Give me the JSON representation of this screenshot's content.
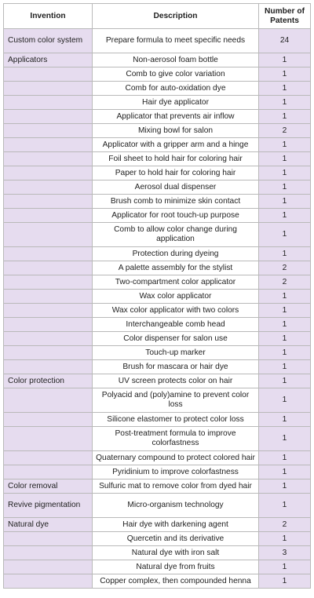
{
  "table": {
    "headers": {
      "invention": "Invention",
      "description": "Description",
      "patents": "Number of Patents"
    },
    "rows": [
      {
        "invention": "Custom color system",
        "description": "Prepare formula to meet specific needs",
        "patents": "24"
      },
      {
        "invention": "Applicators",
        "description": "Non-aerosol foam bottle",
        "patents": "1"
      },
      {
        "invention": "",
        "description": "Comb to give color variation",
        "patents": "1"
      },
      {
        "invention": "",
        "description": "Comb for auto-oxidation dye",
        "patents": "1"
      },
      {
        "invention": "",
        "description": "Hair dye applicator",
        "patents": "1"
      },
      {
        "invention": "",
        "description": "Applicator that prevents air inflow",
        "patents": "1"
      },
      {
        "invention": "",
        "description": "Mixing bowl for salon",
        "patents": "2"
      },
      {
        "invention": "",
        "description": "Applicator with a gripper arm and a hinge",
        "patents": "1"
      },
      {
        "invention": "",
        "description": "Foil sheet to hold hair for coloring hair",
        "patents": "1"
      },
      {
        "invention": "",
        "description": "Paper to hold hair for coloring hair",
        "patents": "1"
      },
      {
        "invention": "",
        "description": "Aerosol dual dispenser",
        "patents": "1"
      },
      {
        "invention": "",
        "description": "Brush comb to minimize skin contact",
        "patents": "1"
      },
      {
        "invention": "",
        "description": "Applicator for root touch-up purpose",
        "patents": "1"
      },
      {
        "invention": "",
        "description": "Comb to allow color change during application",
        "patents": "1"
      },
      {
        "invention": "",
        "description": "Protection during dyeing",
        "patents": "1"
      },
      {
        "invention": "",
        "description": "A palette assembly for the stylist",
        "patents": "2"
      },
      {
        "invention": "",
        "description": "Two-compartment color applicator",
        "patents": "2"
      },
      {
        "invention": "",
        "description": "Wax color applicator",
        "patents": "1"
      },
      {
        "invention": "",
        "description": "Wax color applicator with two colors",
        "patents": "1"
      },
      {
        "invention": "",
        "description": "Interchangeable comb head",
        "patents": "1"
      },
      {
        "invention": "",
        "description": "Color dispenser for salon use",
        "patents": "1"
      },
      {
        "invention": "",
        "description": "Touch-up marker",
        "patents": "1"
      },
      {
        "invention": "",
        "description": "Brush for mascara or hair dye",
        "patents": "1"
      },
      {
        "invention": "Color protection",
        "description": "UV screen protects color on hair",
        "patents": "1"
      },
      {
        "invention": "",
        "description": "Polyacid and (poly)amine to prevent color loss",
        "patents": "1"
      },
      {
        "invention": "",
        "description": "Silicone elastomer to protect color loss",
        "patents": "1"
      },
      {
        "invention": "",
        "description": "Post-treatment formula to improve colorfastness",
        "patents": "1"
      },
      {
        "invention": "",
        "description": "Quaternary compound to protect colored hair",
        "patents": "1"
      },
      {
        "invention": "",
        "description": "Pyridinium to improve colorfastness",
        "patents": "1"
      },
      {
        "invention": "Color removal",
        "description": "Sulfuric mat to remove color from dyed hair",
        "patents": "1"
      },
      {
        "invention": "Revive pigmentation",
        "description": "Micro-organism technology",
        "patents": "1"
      },
      {
        "invention": "Natural dye",
        "description": "Hair dye with darkening agent",
        "patents": "2"
      },
      {
        "invention": "",
        "description": "Quercetin and its derivative",
        "patents": "1"
      },
      {
        "invention": "",
        "description": "Natural dye with iron salt",
        "patents": "3"
      },
      {
        "invention": "",
        "description": "Natural dye from fruits",
        "patents": "1"
      },
      {
        "invention": "",
        "description": "Copper complex, then compounded henna",
        "patents": "1"
      }
    ]
  }
}
